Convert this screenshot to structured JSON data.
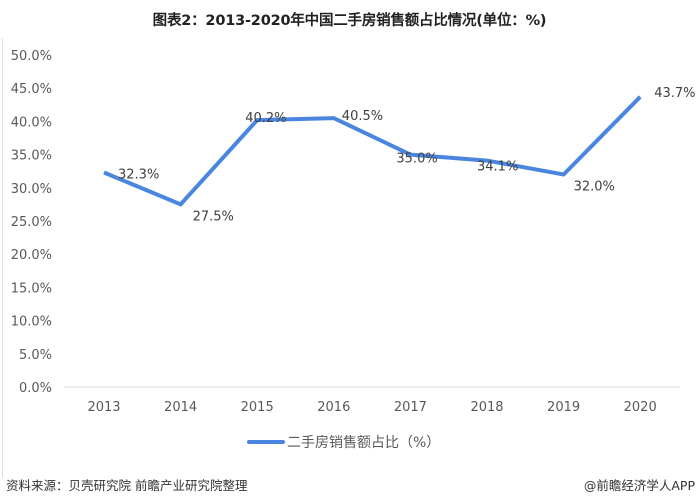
{
  "title": "图表2：2013-2020年中国二手房销售额占比情况(单位：%)",
  "chart_data": {
    "type": "line",
    "title": "图表2：2013-2020年中国二手房销售额占比情况(单位：%)",
    "categories": [
      "2013",
      "2014",
      "2015",
      "2016",
      "2017",
      "2018",
      "2019",
      "2020"
    ],
    "series": [
      {
        "name": "二手房销售额占比（%）",
        "values": [
          32.3,
          27.5,
          40.2,
          40.5,
          35.0,
          34.1,
          32.0,
          43.7
        ],
        "labels": [
          "32.3%",
          "27.5%",
          "40.2%",
          "40.5%",
          "35.0%",
          "34.1%",
          "32.0%",
          "43.7%"
        ],
        "color": "#4a86e0"
      }
    ],
    "xlabel": "",
    "ylabel": "",
    "ylim": [
      0,
      50
    ],
    "yticks": [
      "0.0%",
      "5.0%",
      "10.0%",
      "15.0%",
      "20.0%",
      "25.0%",
      "30.0%",
      "35.0%",
      "40.0%",
      "45.0%",
      "50.0%"
    ],
    "grid": false,
    "legend_position": "bottom"
  },
  "legend": {
    "label": "二手房销售额占比（%）"
  },
  "footer": {
    "source": "资料来源：贝壳研究院 前瞻产业研究院整理",
    "credit": "@前瞻经济学人APP"
  }
}
